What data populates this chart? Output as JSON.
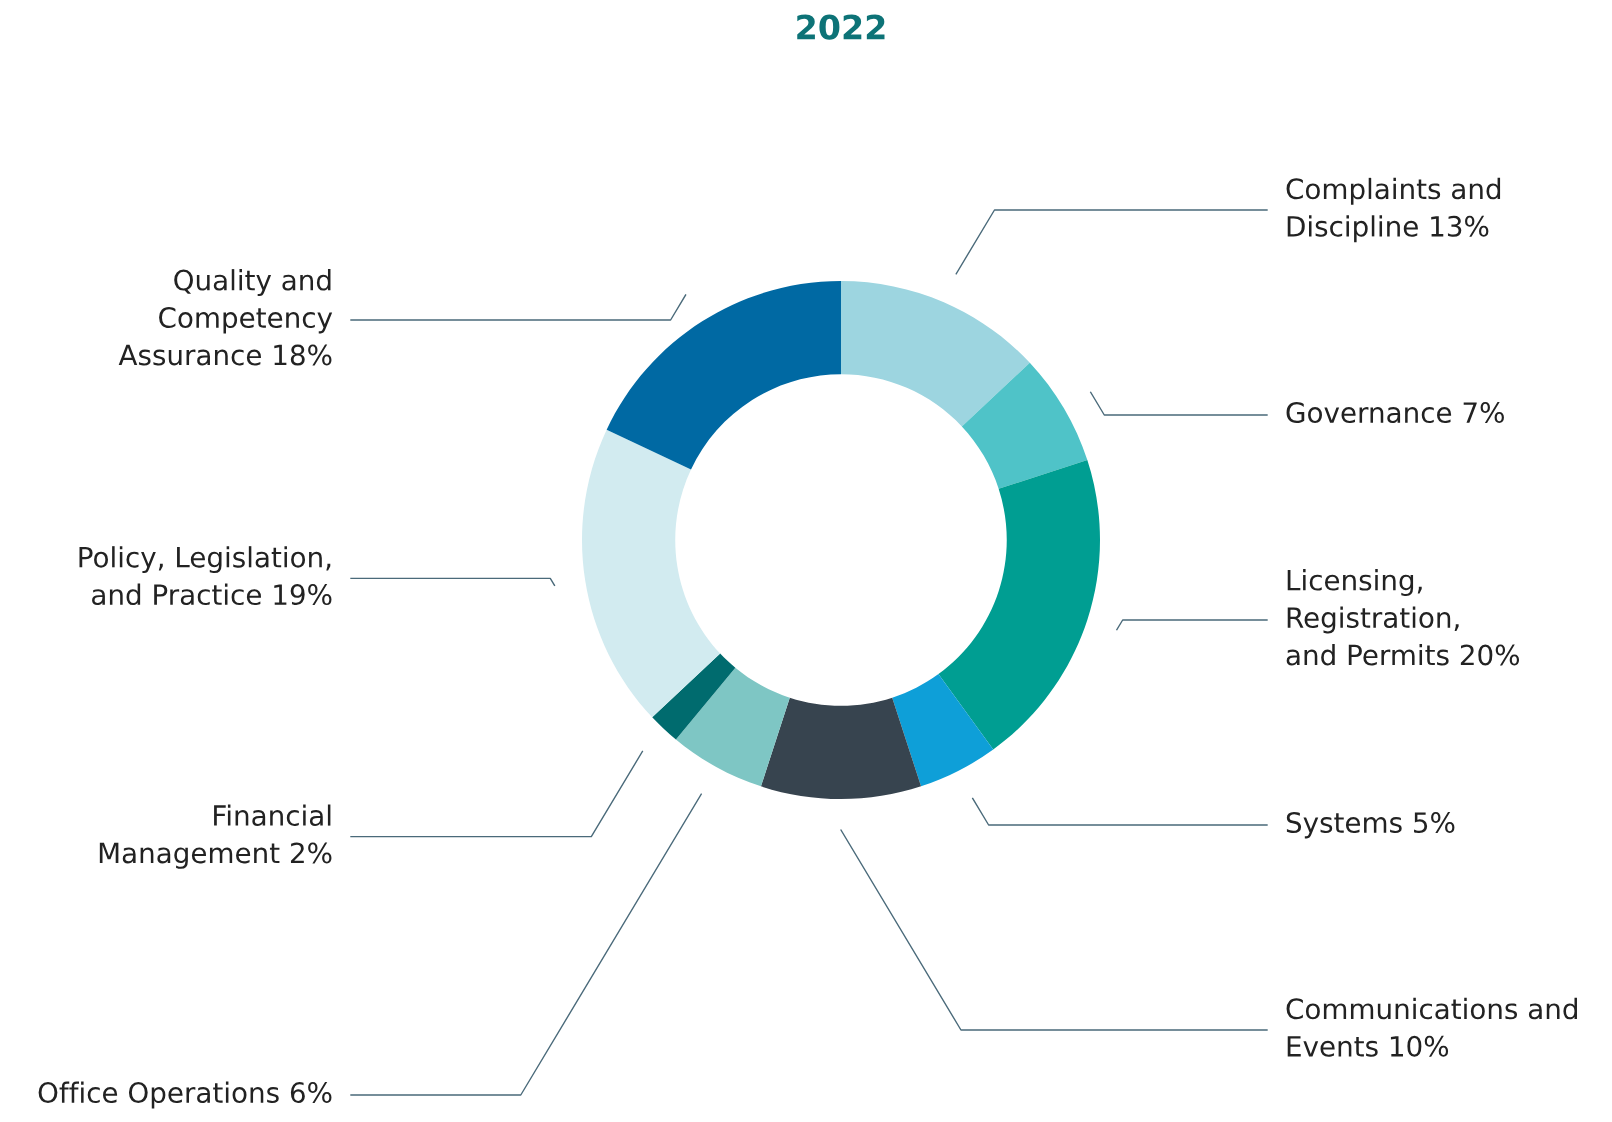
{
  "chart_data": {
    "type": "donut",
    "title": "2022",
    "categories": [
      "Complaints and\nDiscipline",
      "Governance",
      "Licensing,\nRegistration,\nand Permits",
      "Systems",
      "Communications and\nEvents",
      "Office Operations",
      "Financial\nManagement",
      "Policy, Legislation,\nand Practice",
      "Quality and\nCompetency\nAssurance"
    ],
    "values": [
      13,
      7,
      20,
      5,
      10,
      6,
      2,
      19,
      18
    ],
    "value_labels": [
      "13%",
      "7%",
      "20%",
      "5%",
      "10%",
      "6%",
      "2%",
      "19%",
      "18%"
    ],
    "colors": [
      "#9dd5e0",
      "#4fc3c8",
      "#009e92",
      "#0e9fd8",
      "#37444f",
      "#7ec6c4",
      "#006b6e",
      "#d2ebf0",
      "#0069a3"
    ]
  }
}
